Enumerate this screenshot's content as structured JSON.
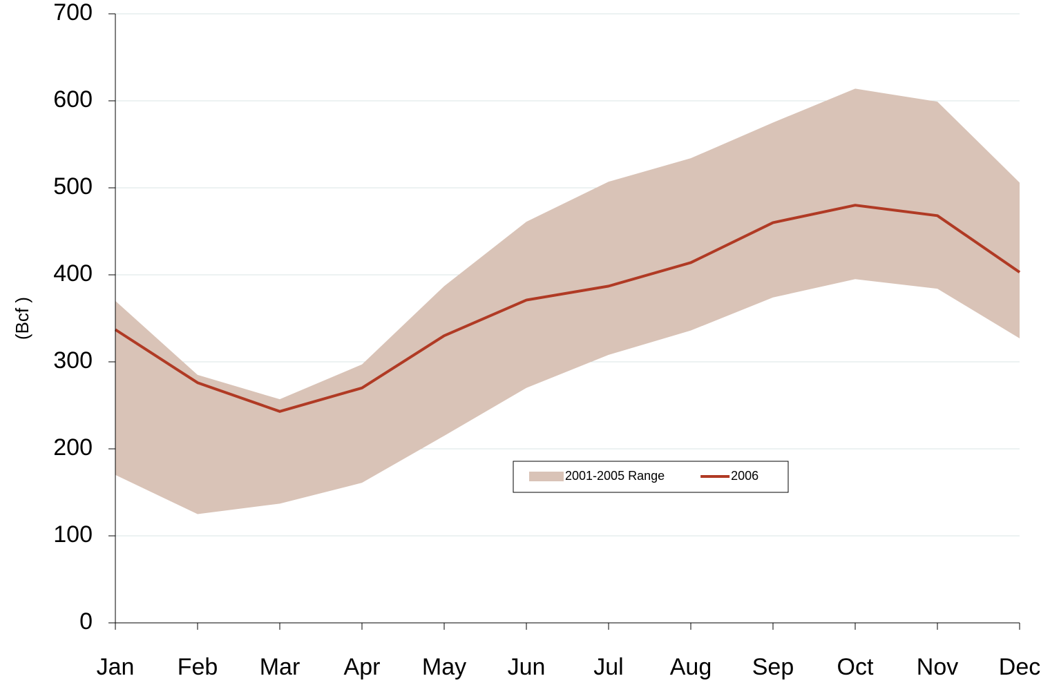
{
  "chart_data": {
    "type": "line",
    "y_label": "(Bcf )",
    "categories": [
      "Jan",
      "Feb",
      "Mar",
      "Apr",
      "May",
      "Jun",
      "Jul",
      "Aug",
      "Sep",
      "Oct",
      "Nov",
      "Dec"
    ],
    "series": [
      {
        "name": "2001-2005 Range",
        "color": "#d9c3b7",
        "upper": [
          370,
          285,
          257,
          297,
          387,
          461,
          507,
          534,
          575,
          614,
          599,
          506
        ],
        "lower": [
          170,
          125,
          137,
          161,
          215,
          270,
          308,
          336,
          374,
          395,
          384,
          327
        ]
      },
      {
        "name": "2006",
        "color": "#b03a24",
        "values": [
          337,
          276,
          243,
          270,
          330,
          371,
          387,
          414,
          460,
          480,
          468,
          403
        ]
      }
    ],
    "ylim": [
      0,
      700
    ],
    "yticks": [
      0,
      100,
      200,
      300,
      400,
      500,
      600,
      700
    ],
    "grid": true
  }
}
